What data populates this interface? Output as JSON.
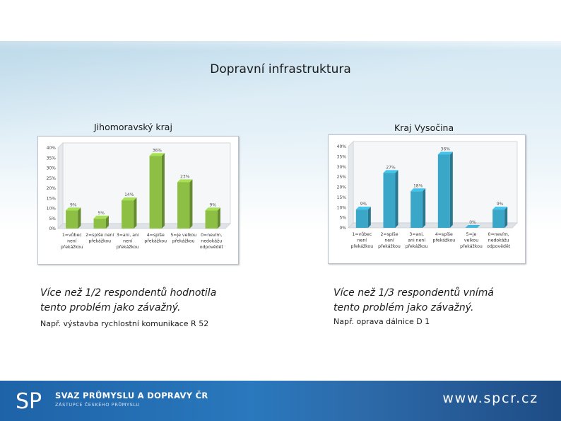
{
  "slide": {
    "title": "Dopravní infrastruktura"
  },
  "charts": {
    "left": {
      "caption": "Jihomoravský kraj",
      "statement_line1": "Více než 1/2 respondentů hodnotila",
      "statement_line2": "tento problém jako závažný.",
      "example": "Např. výstavba rychlostní komunikace R 52"
    },
    "right": {
      "caption": "Kraj Vysočina",
      "statement_line1": "Více než 1/3 respondentů vnímá",
      "statement_line2": "tento problém jako závažný.",
      "example": "Např. oprava dálnice D 1"
    }
  },
  "chart_data": [
    {
      "type": "bar",
      "title": "Jihomoravský kraj",
      "categories": [
        [
          "1=vůbec",
          "není",
          "překážkou"
        ],
        [
          "2=spíše není",
          "překážkou"
        ],
        [
          "3=ani, ani",
          "není",
          "překážkou"
        ],
        [
          "4=spíše",
          "překážkou"
        ],
        [
          "5=je velkou",
          "překážkou"
        ],
        [
          "0=nevím,",
          "nedokážu",
          "odpovědět"
        ]
      ],
      "values": [
        9,
        5,
        14,
        36,
        23,
        9
      ],
      "data_labels": [
        "9%",
        "5%",
        "14%",
        "36%",
        "23%",
        "9%"
      ],
      "yticks": [
        "0%",
        "5%",
        "10%",
        "15%",
        "20%",
        "25%",
        "30%",
        "35%",
        "40%"
      ],
      "ylim": [
        0,
        40
      ],
      "grid": false,
      "color": "#8dbf45"
    },
    {
      "type": "bar",
      "title": "Kraj Vysočina",
      "categories": [
        [
          "1=vůbec",
          "není",
          "překážkou"
        ],
        [
          "2=spíše",
          "není",
          "překážkou"
        ],
        [
          "3=ani,",
          "ani není",
          "překážkou"
        ],
        [
          "4=spíše",
          "překážkou"
        ],
        [
          "5=je",
          "velkou",
          "překážkou"
        ],
        [
          "0=nevím,",
          "nedokážu",
          "odpovědět"
        ]
      ],
      "values": [
        9,
        27,
        18,
        36,
        0,
        9
      ],
      "data_labels": [
        "9%",
        "27%",
        "18%",
        "36%",
        "0%",
        "9%"
      ],
      "yticks": [
        "0%",
        "5%",
        "10%",
        "15%",
        "20%",
        "25%",
        "30%",
        "35%",
        "40%"
      ],
      "ylim": [
        0,
        40
      ],
      "grid": false,
      "color": "#3aa6c8"
    }
  ],
  "footer": {
    "logo_mark": "SP",
    "organization": "SVAZ PRŮMYSLU A DOPRAVY ČR",
    "tagline": "ZÁSTUPCE ČESKÉHO PRŮMYSLU",
    "website": "www.spcr.cz"
  }
}
